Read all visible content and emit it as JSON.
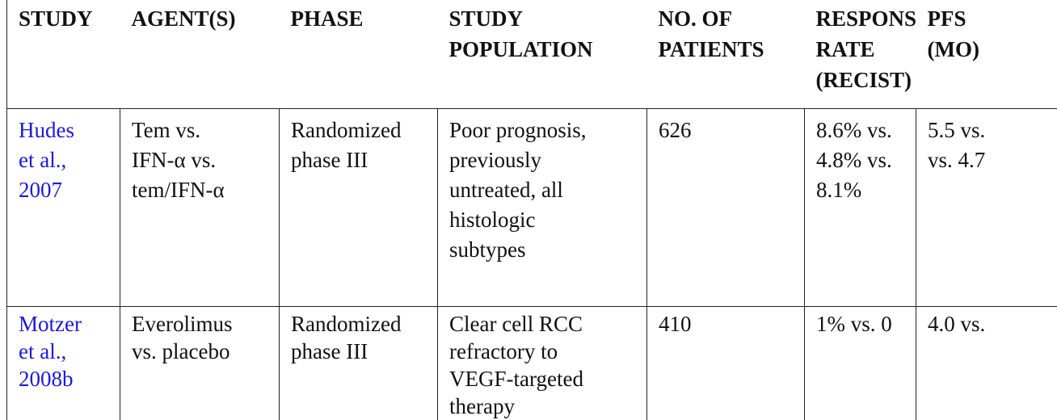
{
  "table": {
    "header": [
      [
        "STUDY"
      ],
      [
        "AGENT(S)"
      ],
      [
        "PHASE"
      ],
      [
        "STUDY",
        "POPULATION"
      ],
      [
        "NO. OF",
        "PATIENTS"
      ],
      [
        "RESPONSE",
        "RATE",
        "(RECIST)"
      ],
      [
        "PFS",
        "(MO)"
      ]
    ],
    "rows": [
      [
        [
          "Hudes",
          "et al.,",
          "2007"
        ],
        [
          "Tem vs.",
          "IFN-α vs.",
          "tem/IFN-α"
        ],
        [
          "Randomized",
          "phase III"
        ],
        [
          "Poor prognosis,",
          "previously",
          "untreated, all",
          "histologic",
          "subtypes"
        ],
        [
          "626"
        ],
        [
          "8.6% vs.",
          "4.8% vs.",
          "8.1%"
        ],
        [
          "5.5 vs.",
          "vs. 4.7"
        ]
      ],
      [
        [
          "Motzer",
          "et al.,",
          "2008b"
        ],
        [
          "Everolimus",
          "vs. placebo"
        ],
        [
          "Randomized",
          "phase III"
        ],
        [
          "Clear cell RCC",
          "refractory to",
          "VEGF-targeted",
          "therapy"
        ],
        [
          "410"
        ],
        [
          "1% vs. 0"
        ],
        [
          "4.0 vs."
        ]
      ]
    ]
  }
}
